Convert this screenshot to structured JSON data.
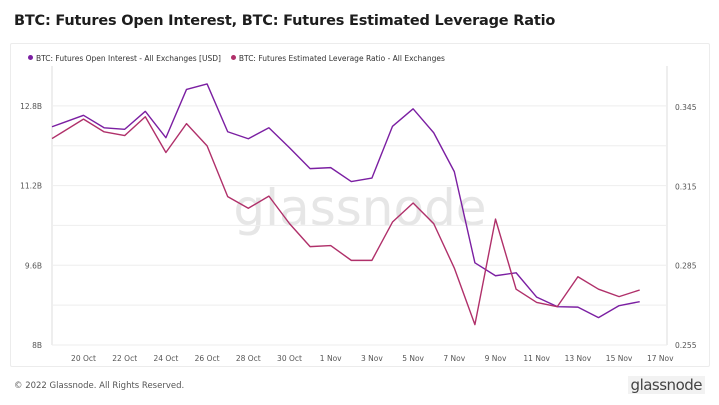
{
  "title": "BTC: Futures Open Interest, BTC: Futures Estimated Leverage Ratio",
  "footer": "© 2022 Glassnode. All Rights Reserved.",
  "logo_text": "glassnode",
  "watermark": "glassnode",
  "chart_data": {
    "type": "line",
    "title": "BTC: Futures Open Interest, BTC: Futures Estimated Leverage Ratio",
    "legend_position": "top-left",
    "grid": true,
    "x": [
      "19 Oct",
      "20 Oct",
      "21 Oct",
      "22 Oct",
      "23 Oct",
      "24 Oct",
      "25 Oct",
      "26 Oct",
      "27 Oct",
      "28 Oct",
      "29 Oct",
      "30 Oct",
      "31 Oct",
      "1 Nov",
      "2 Nov",
      "3 Nov",
      "4 Nov",
      "5 Nov",
      "6 Nov",
      "7 Nov",
      "8 Nov",
      "9 Nov",
      "10 Nov",
      "11 Nov",
      "12 Nov",
      "13 Nov",
      "14 Nov",
      "15 Nov",
      "16 Nov"
    ],
    "x_ticks": [
      "20 Oct",
      "22 Oct",
      "24 Oct",
      "26 Oct",
      "28 Oct",
      "30 Oct",
      "1 Nov",
      "3 Nov",
      "5 Nov",
      "7 Nov",
      "9 Nov",
      "11 Nov",
      "13 Nov",
      "15 Nov",
      "17 Nov"
    ],
    "y_left": {
      "ticks": [
        "8B",
        "9.6B",
        "11.2B",
        "12.8B"
      ],
      "tick_values": [
        8,
        9.6,
        11.2,
        12.8
      ],
      "range": [
        8,
        13.6
      ],
      "unit": "B"
    },
    "y_right": {
      "ticks": [
        "0.255",
        "0.285",
        "0.315",
        "0.345"
      ],
      "tick_values": [
        0.255,
        0.285,
        0.315,
        0.345
      ],
      "range": [
        0.255,
        0.3605
      ]
    },
    "series": [
      {
        "name": "BTC: Futures Open Interest - All Exchanges [USD]",
        "axis": "left",
        "color": "#7b1fa2",
        "values": [
          12.46,
          12.61,
          12.36,
          12.33,
          12.69,
          12.16,
          13.13,
          13.24,
          12.28,
          12.14,
          12.36,
          11.96,
          11.54,
          11.56,
          11.28,
          11.35,
          12.39,
          12.74,
          12.26,
          11.48,
          9.65,
          9.39,
          9.45,
          8.96,
          8.77,
          8.76,
          8.55,
          8.79,
          8.87
        ]
      },
      {
        "name": "BTC: Futures Estimated Leverage Ratio - All Exchanges",
        "axis": "right",
        "color": "#b0306a",
        "values": [
          0.3356,
          0.3404,
          0.3356,
          0.3342,
          0.3413,
          0.3278,
          0.3387,
          0.3303,
          0.3111,
          0.3067,
          0.3113,
          0.3009,
          0.2922,
          0.2926,
          0.287,
          0.287,
          0.3015,
          0.3087,
          0.3009,
          0.2841,
          0.2627,
          0.3026,
          0.2761,
          0.2711,
          0.2695,
          0.2808,
          0.2761,
          0.2733,
          0.2758
        ]
      }
    ]
  }
}
